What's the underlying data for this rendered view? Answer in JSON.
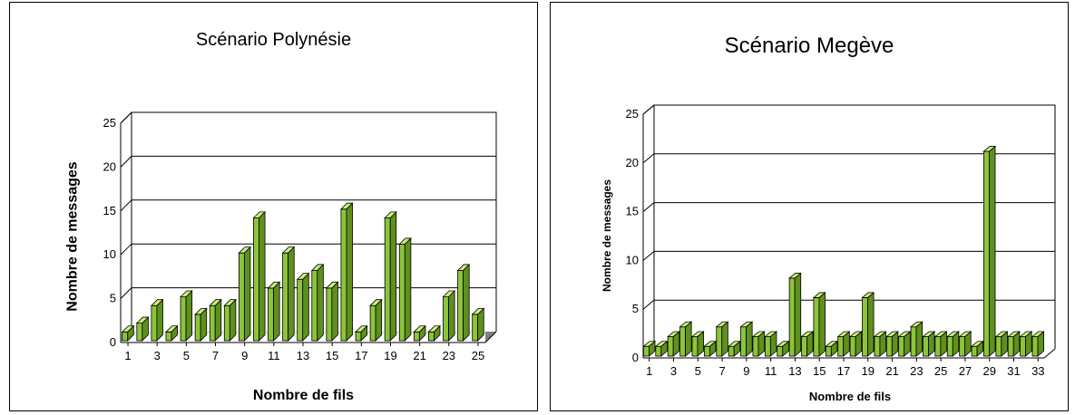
{
  "chart_data": [
    {
      "type": "bar",
      "title": "Scénario Polynésie",
      "xlabel": "Nombre de fils",
      "ylabel": "Nombre de messages",
      "categories": [
        1,
        2,
        3,
        4,
        5,
        6,
        7,
        8,
        9,
        10,
        11,
        12,
        13,
        14,
        15,
        16,
        17,
        18,
        19,
        20,
        21,
        22,
        23,
        24,
        25
      ],
      "x_tick_labels": [
        "1",
        "3",
        "5",
        "7",
        "9",
        "11",
        "13",
        "15",
        "17",
        "19",
        "21",
        "23",
        "25"
      ],
      "values": [
        1,
        2,
        4,
        1,
        5,
        3,
        4,
        4,
        10,
        14,
        6,
        10,
        7,
        8,
        6,
        15,
        1,
        4,
        14,
        11,
        1,
        1,
        5,
        8,
        3
      ],
      "ylim": [
        0,
        25
      ],
      "y_ticks": [
        0,
        5,
        10,
        15,
        20,
        25
      ],
      "grid": true,
      "colors": {
        "bar": "#8cc43a",
        "bar_dark": "#5f8f1e",
        "bar_top": "#c8ec7e",
        "floor": "#808080"
      }
    },
    {
      "type": "bar",
      "title": "Scénario Megève",
      "xlabel": "Nombre de fils",
      "ylabel": "Nombre de messages",
      "categories": [
        1,
        2,
        3,
        4,
        5,
        6,
        7,
        8,
        9,
        10,
        11,
        12,
        13,
        14,
        15,
        16,
        17,
        18,
        19,
        20,
        21,
        22,
        23,
        24,
        25,
        26,
        27,
        28,
        29,
        30,
        31,
        32,
        33
      ],
      "x_tick_labels": [
        "1",
        "3",
        "5",
        "7",
        "9",
        "11",
        "13",
        "15",
        "17",
        "19",
        "21",
        "23",
        "25",
        "27",
        "29",
        "31",
        "33"
      ],
      "values": [
        1,
        1,
        2,
        3,
        2,
        1,
        3,
        1,
        3,
        2,
        2,
        1,
        8,
        2,
        6,
        1,
        2,
        2,
        6,
        2,
        2,
        2,
        3,
        2,
        2,
        2,
        2,
        1,
        21,
        2,
        2,
        2,
        2
      ],
      "ylim": [
        0,
        25
      ],
      "y_ticks": [
        0,
        5,
        10,
        15,
        20,
        25
      ],
      "grid": true,
      "colors": {
        "bar": "#8cc43a",
        "bar_dark": "#5f8f1e",
        "bar_top": "#c8ec7e"
      }
    }
  ]
}
